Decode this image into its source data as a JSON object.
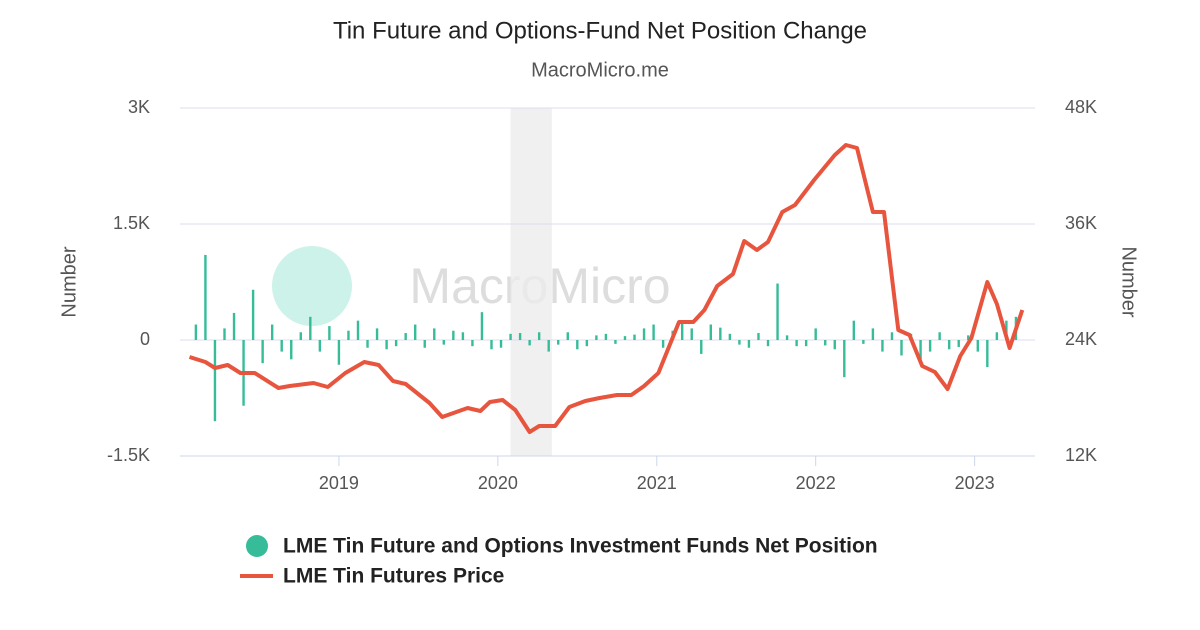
{
  "chart_data": {
    "type": "combo",
    "title": "Tin Future and Options-Fund Net Position Change",
    "subtitle": "MacroMicro.me",
    "watermark": "MacroMicro",
    "y_label": "Number",
    "y2_label": "Number",
    "xlim": [
      2018.0,
      2023.38
    ],
    "xticks": [
      2019,
      2020,
      2021,
      2022,
      2023
    ],
    "ylim": [
      -1500,
      3000
    ],
    "yticks": [
      {
        "value": -1500,
        "label": "-1.5K"
      },
      0,
      {
        "value": 1500,
        "label": "1.5K"
      },
      {
        "value": 3000,
        "label": "3K"
      }
    ],
    "y2lim": [
      12000,
      48000
    ],
    "y2ticks": [
      {
        "value": 12000,
        "label": "12K"
      },
      {
        "value": 24000,
        "label": "24K"
      },
      {
        "value": 36000,
        "label": "36K"
      },
      {
        "value": 48000,
        "label": "48K"
      }
    ],
    "grid": true,
    "highlight_xrange": [
      2020.08,
      2020.34
    ],
    "series": [
      {
        "name": "LME Tin Future and Options Investment Funds Net Position",
        "type": "bar",
        "color": "#36bc98",
        "x": [
          2018.1,
          2018.16,
          2018.22,
          2018.28,
          2018.34,
          2018.4,
          2018.46,
          2018.52,
          2018.58,
          2018.64,
          2018.7,
          2018.76,
          2018.82,
          2018.88,
          2018.94,
          2019.0,
          2019.06,
          2019.12,
          2019.18,
          2019.24,
          2019.3,
          2019.36,
          2019.42,
          2019.48,
          2019.54,
          2019.6,
          2019.66,
          2019.72,
          2019.78,
          2019.84,
          2019.9,
          2019.96,
          2020.02,
          2020.08,
          2020.14,
          2020.2,
          2020.26,
          2020.32,
          2020.38,
          2020.44,
          2020.5,
          2020.56,
          2020.62,
          2020.68,
          2020.74,
          2020.8,
          2020.86,
          2020.92,
          2020.98,
          2021.04,
          2021.1,
          2021.16,
          2021.22,
          2021.28,
          2021.34,
          2021.4,
          2021.46,
          2021.52,
          2021.58,
          2021.64,
          2021.7,
          2021.76,
          2021.82,
          2021.88,
          2021.94,
          2022.0,
          2022.06,
          2022.12,
          2022.18,
          2022.24,
          2022.3,
          2022.36,
          2022.42,
          2022.48,
          2022.54,
          2022.6,
          2022.66,
          2022.72,
          2022.78,
          2022.84,
          2022.9,
          2022.96,
          2023.02,
          2023.08,
          2023.14,
          2023.2,
          2023.26
        ],
        "values": [
          200,
          1100,
          -1050,
          150,
          350,
          -850,
          650,
          -300,
          200,
          -150,
          -250,
          100,
          300,
          -150,
          180,
          -320,
          120,
          250,
          -100,
          150,
          -120,
          -80,
          90,
          200,
          -100,
          150,
          -60,
          120,
          100,
          -80,
          360,
          -120,
          -100,
          80,
          90,
          -70,
          100,
          -150,
          -60,
          100,
          -120,
          -80,
          60,
          80,
          -50,
          50,
          70,
          150,
          200,
          -100,
          120,
          250,
          150,
          -180,
          200,
          160,
          80,
          -60,
          -100,
          90,
          -80,
          730,
          60,
          -80,
          -80,
          150,
          -70,
          -120,
          -480,
          250,
          -50,
          150,
          -150,
          100,
          -200,
          80,
          -250,
          -150,
          100,
          -120,
          -90,
          60,
          -150,
          -350,
          100,
          250,
          300
        ]
      },
      {
        "name": "LME Tin Futures Price",
        "type": "line",
        "axis": "y2",
        "color": "#e8553e",
        "x": [
          2018.06,
          2018.16,
          2018.22,
          2018.3,
          2018.38,
          2018.47,
          2018.62,
          2018.69,
          2018.84,
          2018.93,
          2019.04,
          2019.16,
          2019.25,
          2019.34,
          2019.42,
          2019.57,
          2019.65,
          2019.81,
          2019.89,
          2019.95,
          2020.03,
          2020.11,
          2020.2,
          2020.26,
          2020.36,
          2020.45,
          2020.55,
          2020.64,
          2020.75,
          2020.84,
          2020.92,
          2021.01,
          2021.14,
          2021.23,
          2021.3,
          2021.38,
          2021.48,
          2021.55,
          2021.63,
          2021.7,
          2021.79,
          2021.87,
          2021.99,
          2022.12,
          2022.19,
          2022.26,
          2022.36,
          2022.43,
          2022.52,
          2022.59,
          2022.67,
          2022.75,
          2022.83,
          2022.91,
          2022.98,
          2023.08,
          2023.14,
          2023.22,
          2023.3
        ],
        "values": [
          22240,
          21720,
          21100,
          21410,
          20590,
          20590,
          19030,
          19240,
          19550,
          19140,
          20590,
          21720,
          21410,
          19760,
          19450,
          17480,
          16030,
          16970,
          16660,
          17590,
          17790,
          16760,
          14480,
          15100,
          15100,
          17070,
          17690,
          18000,
          18310,
          18310,
          19240,
          20590,
          25860,
          25860,
          27100,
          29590,
          30830,
          34240,
          33310,
          34140,
          37240,
          37970,
          40550,
          43140,
          44170,
          43860,
          37240,
          37240,
          25030,
          24520,
          21310,
          20690,
          18930,
          22340,
          24210,
          30000,
          27720,
          23170,
          27100
        ]
      }
    ]
  }
}
